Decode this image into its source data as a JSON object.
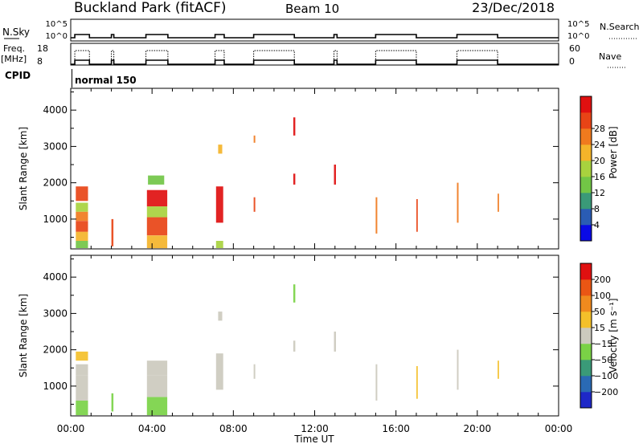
{
  "header": {
    "title": "Buckland Park (fitACF)",
    "beam": "Beam 10",
    "date": "23/Dec/2018"
  },
  "strips": {
    "nsky_label": "N.Sky",
    "nsearch_label": "N.Search",
    "nsky_ticks": [
      "10^5",
      "10^0"
    ],
    "nsearch_ticks": [
      "10^5",
      "10^0"
    ],
    "freq_label": "Freq.",
    "freq_unit": "[MHz]",
    "freq_ticks": [
      "18",
      "8"
    ],
    "nave_label": "Nave",
    "nave_ticks": [
      "60",
      "0"
    ],
    "cpid_label": "CPID",
    "cpid_value": "normal 150",
    "on_windows_hours": [
      [
        0.2,
        0.92
      ],
      [
        2.0,
        2.12
      ],
      [
        3.7,
        4.78
      ],
      [
        7.1,
        7.55
      ],
      [
        9.0,
        11.0
      ],
      [
        12.95,
        13.1
      ],
      [
        15.0,
        17.0
      ],
      [
        19.0,
        21.0
      ]
    ]
  },
  "chart_data": [
    {
      "type": "heatmap",
      "name": "power",
      "xlabel": "Time UT",
      "ylabel": "Slant Range [km]",
      "xlim": [
        0,
        24
      ],
      "ylim": [
        180,
        4600
      ],
      "x_ticks": [
        "00:00",
        "04:00",
        "08:00",
        "12:00",
        "16:00",
        "20:00",
        "00:00"
      ],
      "y_ticks": [
        1000,
        2000,
        3000,
        4000
      ],
      "colorbar": {
        "label": "Power [dB]",
        "ticks": [
          4,
          8,
          12,
          16,
          20,
          24,
          28
        ],
        "colors": [
          "#0a0ae6",
          "#2a5cb4",
          "#3a9a78",
          "#72c646",
          "#a8d23e",
          "#f4b42a",
          "#f07a1e",
          "#e84416",
          "#e01010"
        ]
      },
      "blocks": [
        {
          "t0": 0.25,
          "t1": 0.85,
          "r0": 1500,
          "r1": 1900,
          "c": 7
        },
        {
          "t0": 0.25,
          "t1": 0.85,
          "r0": 1200,
          "r1": 1450,
          "c": 4
        },
        {
          "t0": 0.25,
          "t1": 0.85,
          "r0": 950,
          "r1": 1200,
          "c": 6
        },
        {
          "t0": 0.25,
          "t1": 0.85,
          "r0": 650,
          "r1": 950,
          "c": 7
        },
        {
          "t0": 0.25,
          "t1": 0.85,
          "r0": 400,
          "r1": 650,
          "c": 5
        },
        {
          "t0": 0.25,
          "t1": 0.85,
          "r0": 200,
          "r1": 400,
          "c": 3
        },
        {
          "t0": 2.0,
          "t1": 2.1,
          "r0": 250,
          "r1": 1000,
          "c": 7
        },
        {
          "t0": 3.75,
          "t1": 4.75,
          "r0": 1350,
          "r1": 1800,
          "c": 8
        },
        {
          "t0": 3.75,
          "t1": 4.75,
          "r0": 1050,
          "r1": 1350,
          "c": 4
        },
        {
          "t0": 3.75,
          "t1": 4.75,
          "r0": 550,
          "r1": 1050,
          "c": 7
        },
        {
          "t0": 3.75,
          "t1": 4.75,
          "r0": 200,
          "r1": 550,
          "c": 5
        },
        {
          "t0": 3.8,
          "t1": 4.6,
          "r0": 1950,
          "r1": 2200,
          "c": 3
        },
        {
          "t0": 7.15,
          "t1": 7.5,
          "r0": 900,
          "r1": 1900,
          "c": 8
        },
        {
          "t0": 7.15,
          "t1": 7.5,
          "r0": 200,
          "r1": 400,
          "c": 4
        },
        {
          "t0": 7.25,
          "t1": 7.45,
          "r0": 2800,
          "r1": 3050,
          "c": 5
        },
        {
          "t0": 9.0,
          "t1": 9.08,
          "r0": 1200,
          "r1": 1600,
          "c": 7
        },
        {
          "t0": 9.0,
          "t1": 9.08,
          "r0": 3100,
          "r1": 3300,
          "c": 6
        },
        {
          "t0": 10.95,
          "t1": 11.05,
          "r0": 3300,
          "r1": 3800,
          "c": 8
        },
        {
          "t0": 10.95,
          "t1": 11.05,
          "r0": 1950,
          "r1": 2250,
          "c": 8
        },
        {
          "t0": 12.95,
          "t1": 13.05,
          "r0": 1950,
          "r1": 2500,
          "c": 8
        },
        {
          "t0": 15.0,
          "t1": 15.08,
          "r0": 600,
          "r1": 1600,
          "c": 6
        },
        {
          "t0": 17.0,
          "t1": 17.07,
          "r0": 650,
          "r1": 1550,
          "c": 7
        },
        {
          "t0": 19.0,
          "t1": 19.08,
          "r0": 900,
          "r1": 2000,
          "c": 6
        },
        {
          "t0": 21.0,
          "t1": 21.07,
          "r0": 1200,
          "r1": 1700,
          "c": 6
        }
      ]
    },
    {
      "type": "heatmap",
      "name": "velocity",
      "xlabel": "Time UT",
      "ylabel": "Slant Range [km]",
      "xlim": [
        0,
        24
      ],
      "ylim": [
        180,
        4600
      ],
      "x_ticks": [
        "00:00",
        "04:00",
        "08:00",
        "12:00",
        "16:00",
        "20:00",
        "00:00"
      ],
      "y_ticks": [
        1000,
        2000,
        3000,
        4000
      ],
      "colorbar": {
        "label": "Velocity [m s⁻¹]",
        "ticks": [
          200,
          100,
          50,
          15,
          -15,
          -50,
          -100,
          -200
        ],
        "colors": [
          "#1e28c8",
          "#2a6ab4",
          "#3a9a78",
          "#7ad246",
          "#cccabe",
          "#f4c02a",
          "#f08a1e",
          "#ea5614",
          "#e01010"
        ]
      },
      "blocks": [
        {
          "t0": 0.25,
          "t1": 0.85,
          "r0": 1700,
          "r1": 1950,
          "c": 5
        },
        {
          "t0": 0.25,
          "t1": 0.85,
          "r0": 1300,
          "r1": 1600,
          "c": 4
        },
        {
          "t0": 0.25,
          "t1": 0.85,
          "r0": 600,
          "r1": 1300,
          "c": 4
        },
        {
          "t0": 0.25,
          "t1": 0.85,
          "r0": 200,
          "r1": 600,
          "c": 3
        },
        {
          "t0": 2.0,
          "t1": 2.1,
          "r0": 300,
          "r1": 800,
          "c": 3
        },
        {
          "t0": 3.75,
          "t1": 4.75,
          "r0": 1300,
          "r1": 1700,
          "c": 4
        },
        {
          "t0": 3.75,
          "t1": 4.75,
          "r0": 700,
          "r1": 1300,
          "c": 4
        },
        {
          "t0": 3.75,
          "t1": 4.75,
          "r0": 200,
          "r1": 700,
          "c": 3
        },
        {
          "t0": 7.15,
          "t1": 7.5,
          "r0": 900,
          "r1": 1900,
          "c": 4
        },
        {
          "t0": 7.25,
          "t1": 7.45,
          "r0": 2800,
          "r1": 3050,
          "c": 4
        },
        {
          "t0": 9.0,
          "t1": 9.08,
          "r0": 1200,
          "r1": 1600,
          "c": 4
        },
        {
          "t0": 10.95,
          "t1": 11.05,
          "r0": 3300,
          "r1": 3800,
          "c": 3
        },
        {
          "t0": 10.95,
          "t1": 11.05,
          "r0": 1950,
          "r1": 2250,
          "c": 4
        },
        {
          "t0": 12.95,
          "t1": 13.05,
          "r0": 1950,
          "r1": 2500,
          "c": 4
        },
        {
          "t0": 15.0,
          "t1": 15.08,
          "r0": 600,
          "r1": 1600,
          "c": 4
        },
        {
          "t0": 17.0,
          "t1": 17.07,
          "r0": 650,
          "r1": 1550,
          "c": 5
        },
        {
          "t0": 19.0,
          "t1": 19.08,
          "r0": 900,
          "r1": 2000,
          "c": 4
        },
        {
          "t0": 21.0,
          "t1": 21.07,
          "r0": 1200,
          "r1": 1700,
          "c": 5
        }
      ]
    }
  ]
}
